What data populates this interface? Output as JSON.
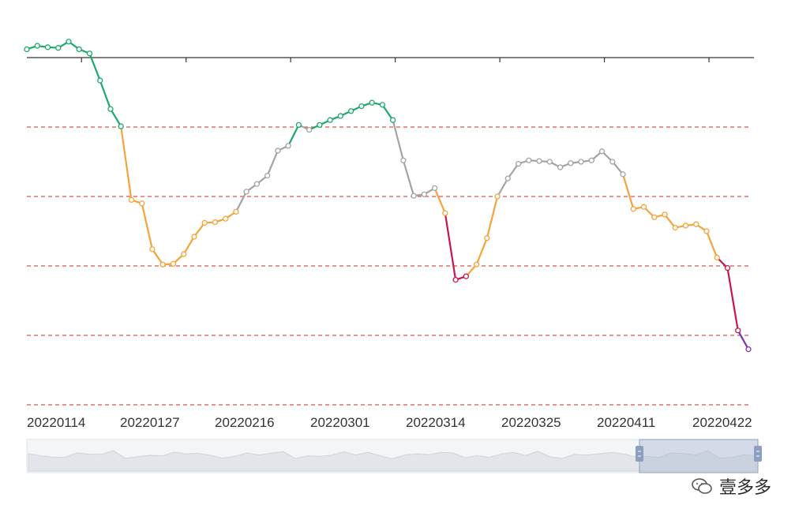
{
  "chart_data": {
    "type": "line",
    "title": "",
    "xlabel": "",
    "ylabel": "",
    "x_tick_labels": [
      "20220114",
      "20220127",
      "20220216",
      "20220301",
      "20220314",
      "20220325",
      "20220411",
      "20220422"
    ],
    "x_tick_index": [
      5,
      15,
      25,
      35,
      45,
      55,
      65,
      75
    ],
    "ylim": [
      -5,
      1
    ],
    "reference_lines": [
      -1,
      -2,
      -3,
      -4,
      -5
    ],
    "grid": false,
    "series": [
      {
        "values": [
          0.12,
          0.17,
          0.15,
          0.14,
          0.23,
          0.12,
          0.06,
          -0.33,
          -0.74,
          -0.99,
          -2.05,
          -2.1,
          -2.76,
          -2.98,
          -2.97,
          -2.83,
          -2.58,
          -2.38,
          -2.37,
          -2.32,
          -2.22,
          -1.93,
          -1.82,
          -1.7,
          -1.34,
          -1.27,
          -0.97,
          -1.04,
          -0.97,
          -0.9,
          -0.84,
          -0.77,
          -0.7,
          -0.65,
          -0.68,
          -0.9,
          -1.48,
          -1.99,
          -1.97,
          -1.88,
          -2.24,
          -3.2,
          -3.15,
          -2.98,
          -2.6,
          -2.0,
          -1.74,
          -1.53,
          -1.48,
          -1.49,
          -1.5,
          -1.58,
          -1.52,
          -1.5,
          -1.48,
          -1.35,
          -1.5,
          -1.68,
          -2.18,
          -2.15,
          -2.3,
          -2.26,
          -2.45,
          -2.42,
          -2.4,
          -2.5,
          -2.88,
          -3.03,
          -3.93,
          -4.2
        ]
      }
    ],
    "segment_colors": {
      "above_-1": "#1aaa6e",
      "-1_to_-2": "#a3a3a3",
      "-2_to_-3": "#f5a33a",
      "-3_to_-4": "#c8164b",
      "below_-4": "#7a2fb8"
    },
    "reference_line_color": "#d9534f",
    "axis_color": "#333333"
  },
  "watermark": {
    "text": "壹多多"
  }
}
